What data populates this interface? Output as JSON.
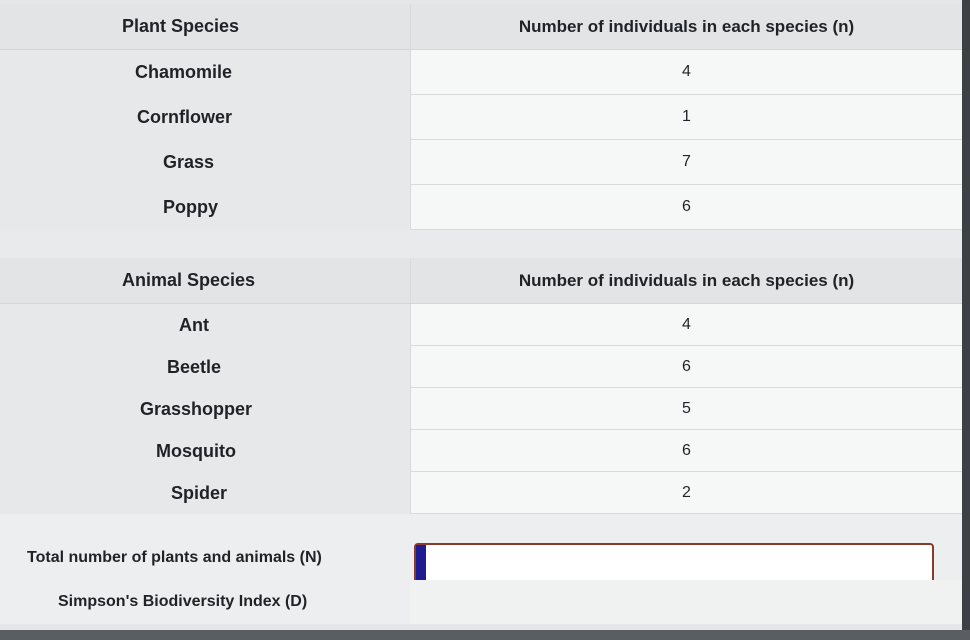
{
  "plants": {
    "header_label": "Plant Species",
    "header_count": "Number of individuals in each species (n)",
    "rows": [
      {
        "name": "Chamomile",
        "n": "4"
      },
      {
        "name": "Cornflower",
        "n": "1"
      },
      {
        "name": "Grass",
        "n": "7"
      },
      {
        "name": "Poppy",
        "n": "6"
      }
    ]
  },
  "animals": {
    "header_label": "Animal Species",
    "header_count": "Number of individuals in each species (n)",
    "rows": [
      {
        "name": "Ant",
        "n": "4"
      },
      {
        "name": "Beetle",
        "n": "6"
      },
      {
        "name": "Grasshopper",
        "n": "5"
      },
      {
        "name": "Mosquito",
        "n": "6"
      },
      {
        "name": "Spider",
        "n": "2"
      }
    ]
  },
  "totals": {
    "total_label": "Total number of plants and animals (N)",
    "total_value": "",
    "index_label": "Simpson's Biodiversity Index (D)"
  },
  "colors": {
    "input_border": "#8a3a2a",
    "input_accent": "#1e1a8f"
  }
}
